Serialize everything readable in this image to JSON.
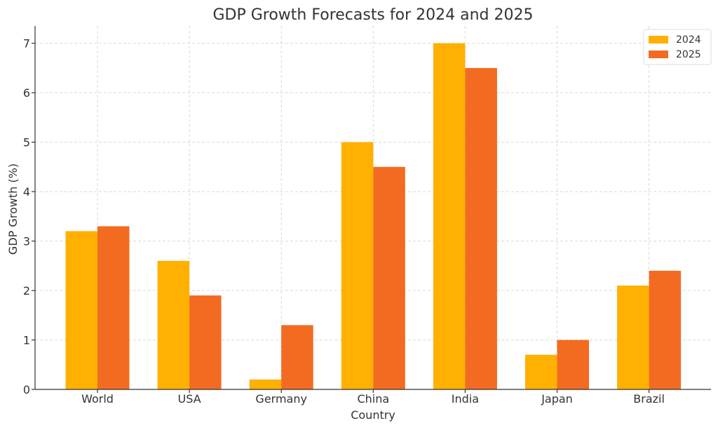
{
  "chart_data": {
    "type": "bar",
    "title": "GDP Growth Forecasts for 2024 and 2025",
    "xlabel": "Country",
    "ylabel": "GDP Growth (%)",
    "categories": [
      "World",
      "USA",
      "Germany",
      "China",
      "India",
      "Japan",
      "Brazil"
    ],
    "series": [
      {
        "name": "2024",
        "color": "#FFB000",
        "values": [
          3.2,
          2.6,
          0.2,
          5.0,
          7.0,
          0.7,
          2.1
        ]
      },
      {
        "name": "2025",
        "color": "#F26B21",
        "values": [
          3.3,
          1.9,
          1.3,
          4.5,
          6.5,
          1.0,
          2.4
        ]
      }
    ],
    "ylim": [
      0,
      7.35
    ],
    "yticks": [
      0,
      1,
      2,
      3,
      4,
      5,
      6,
      7
    ],
    "grid": true,
    "legend_position": "top-right"
  }
}
